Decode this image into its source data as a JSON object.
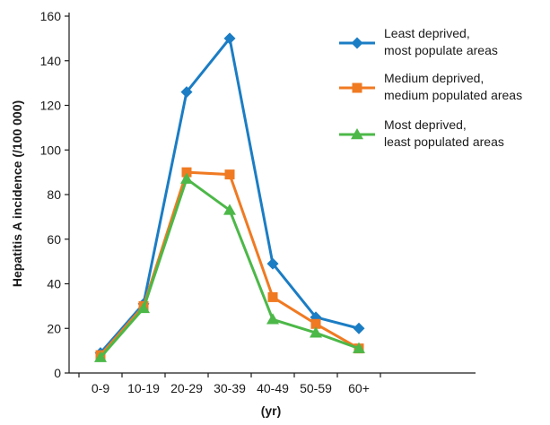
{
  "chart_data": {
    "type": "line",
    "title": "",
    "xlabel": "(yr)",
    "ylabel": "Hepatitis A incidence (/100 000)",
    "categories": [
      "0-9",
      "10-19",
      "20-29",
      "30-39",
      "40-49",
      "50-59",
      "60+"
    ],
    "ylim": [
      0,
      160
    ],
    "yticks": [
      0,
      20,
      40,
      60,
      80,
      100,
      120,
      140,
      160
    ],
    "grid": false,
    "legend_position": "top-right",
    "series": [
      {
        "name": "Least deprived, most populate areas",
        "legend_lines": [
          "Least deprived,",
          "most populate areas"
        ],
        "marker": "diamond",
        "color": "#1b7dc4",
        "values": [
          9,
          31,
          126,
          150,
          49,
          25,
          20
        ]
      },
      {
        "name": "Medium deprived, medium populated areas",
        "legend_lines": [
          "Medium deprived,",
          "medium populated areas"
        ],
        "marker": "square",
        "color": "#f07a22",
        "values": [
          8,
          30,
          90,
          89,
          34,
          22,
          11
        ]
      },
      {
        "name": "Most deprived, least populated areas",
        "legend_lines": [
          "Most deprived,",
          "least populated areas"
        ],
        "marker": "triangle",
        "color": "#4cb848",
        "values": [
          7,
          29,
          87,
          73,
          24,
          18,
          11
        ]
      }
    ]
  }
}
